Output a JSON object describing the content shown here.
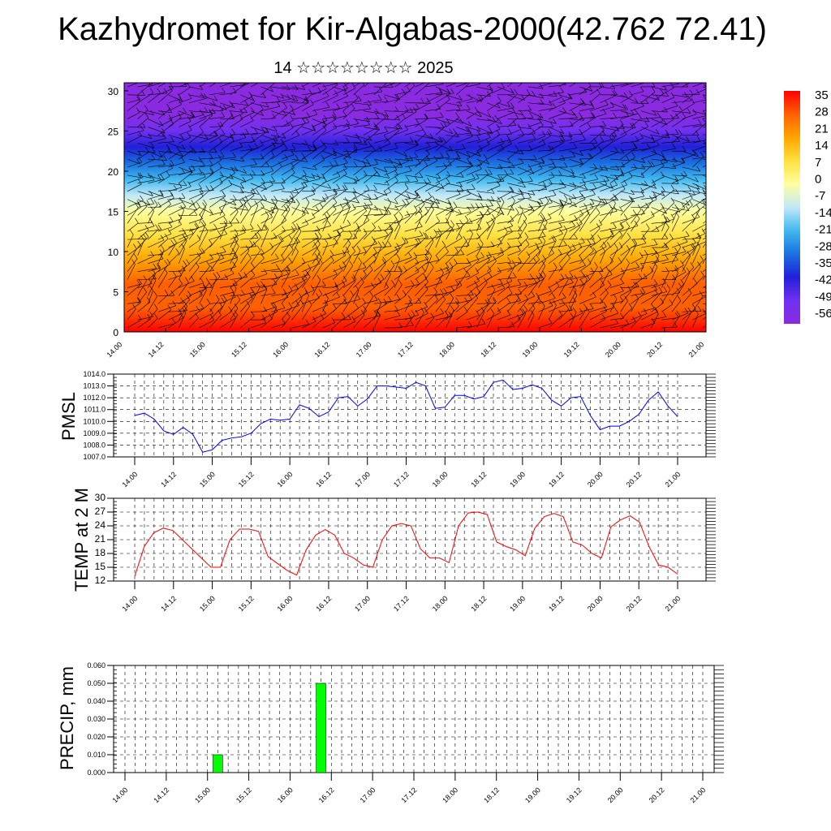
{
  "title": "Kazhydromet for Kir-Algabas-2000(42.762 72.41)",
  "subtitle": "14 ☆☆☆☆☆☆☆☆ 2025",
  "chart_data": [
    {
      "type": "heatmap",
      "name": "cross-section",
      "ylim": [
        0,
        31
      ],
      "yticks": [
        "0",
        "5",
        "10",
        "15",
        "20",
        "25",
        "30"
      ],
      "ytick_values": [
        0,
        5,
        10,
        15,
        20,
        25,
        30
      ],
      "xticks": [
        "14.00",
        "14.12",
        "15.00",
        "15.12",
        "16.00",
        "16.12",
        "17.00",
        "17.12",
        "18.00",
        "18.12",
        "19.00",
        "19.12",
        "20.00",
        "20.12",
        "21.00"
      ],
      "colorbar": {
        "labels": [
          "35",
          "28",
          "21",
          "14",
          "7",
          "0",
          "-7",
          "-14",
          "-21",
          "-28",
          "-35",
          "-42",
          "-49",
          "-56"
        ],
        "colors": [
          "#ff0000",
          "#ff6000",
          "#ffa500",
          "#ffe040",
          "#ffffa0",
          "#c0e8f8",
          "#40b8f0",
          "#1a70e0",
          "#2020d8",
          "#7030f0",
          "#8a2be2"
        ]
      },
      "temperature_by_height": {
        "height": [
          0,
          3,
          6,
          9,
          12,
          15,
          17,
          19,
          21,
          23,
          25,
          27,
          31
        ],
        "temp": [
          35,
          30,
          22,
          14,
          6,
          -5,
          -14,
          -24,
          -33,
          -42,
          -52,
          -58,
          -60
        ]
      }
    },
    {
      "type": "line",
      "name": "pmsl",
      "ylabel": "PMSL",
      "ylim": [
        1007.0,
        1014.0
      ],
      "yticks": [
        "1007.0",
        "1008.0",
        "1009.0",
        "1010.0",
        "1011.0",
        "1012.0",
        "1013.0",
        "1014.0"
      ],
      "ytick_values": [
        1007,
        1008,
        1009,
        1010,
        1011,
        1012,
        1013,
        1014
      ],
      "xticks": [
        "14.00",
        "14.12",
        "15.00",
        "15.12",
        "16.00",
        "16.12",
        "17.00",
        "17.12",
        "18.00",
        "18.12",
        "19.00",
        "19.12",
        "20.00",
        "20.12",
        "21.00"
      ],
      "color": "#0000ff",
      "values": [
        1010.5,
        1010.7,
        1010.2,
        1009.2,
        1008.9,
        1009.5,
        1008.9,
        1007.4,
        1007.6,
        1008.4,
        1008.6,
        1008.7,
        1009.0,
        1009.8,
        1010.2,
        1010.1,
        1010.2,
        1011.4,
        1011.1,
        1010.4,
        1010.8,
        1012.0,
        1012.1,
        1011.3,
        1011.9,
        1013.0,
        1013.0,
        1012.9,
        1012.8,
        1013.3,
        1013.0,
        1011.1,
        1011.2,
        1012.2,
        1012.2,
        1011.9,
        1012.1,
        1013.3,
        1013.5,
        1012.7,
        1012.8,
        1013.1,
        1012.8,
        1011.8,
        1011.3,
        1012.0,
        1012.1,
        1010.5,
        1009.3,
        1009.6,
        1009.6,
        1010.0,
        1010.6,
        1011.8,
        1012.5,
        1011.3,
        1010.4
      ]
    },
    {
      "type": "line",
      "name": "temp2m",
      "ylabel": "TEMP at 2 M",
      "ylim": [
        12,
        30
      ],
      "yticks": [
        "12",
        "15",
        "18",
        "21",
        "24",
        "27",
        "30"
      ],
      "ytick_values": [
        12,
        15,
        18,
        21,
        24,
        27,
        30
      ],
      "xticks": [
        "14.00",
        "14.12",
        "15.00",
        "15.12",
        "16.00",
        "16.12",
        "17.00",
        "17.12",
        "18.00",
        "18.12",
        "19.00",
        "19.12",
        "20.00",
        "20.12",
        "21.00"
      ],
      "color": "#ff0000",
      "values": [
        13.0,
        19.5,
        22.5,
        23.5,
        23.0,
        21.0,
        19.0,
        17.0,
        15.0,
        15.0,
        21.0,
        23.3,
        23.3,
        22.8,
        17.3,
        15.8,
        14.3,
        13.3,
        18.8,
        22.0,
        23.2,
        22.0,
        18.0,
        17.0,
        15.5,
        15.0,
        21.0,
        24.0,
        24.5,
        24.0,
        19.0,
        17.0,
        17.0,
        16.0,
        24.0,
        26.8,
        27.0,
        26.5,
        20.5,
        19.5,
        18.8,
        17.5,
        23.5,
        26.0,
        26.7,
        26.0,
        20.5,
        19.8,
        18.0,
        17.0,
        23.8,
        25.3,
        26.2,
        24.8,
        19.5,
        15.5,
        15.0,
        13.5
      ]
    },
    {
      "type": "bar",
      "name": "precip",
      "ylabel": "PRECIP, mm",
      "ylim": [
        0,
        0.06
      ],
      "yticks": [
        "0.000",
        "0.010",
        "0.020",
        "0.030",
        "0.040",
        "0.050",
        "0.060"
      ],
      "ytick_values": [
        0,
        0.01,
        0.02,
        0.03,
        0.04,
        0.05,
        0.06
      ],
      "xticks": [
        "14.00",
        "14.12",
        "15.00",
        "15.12",
        "16.00",
        "16.12",
        "17.00",
        "17.12",
        "18.00",
        "18.12",
        "19.00",
        "19.12",
        "20.00",
        "20.12",
        "21.00"
      ],
      "color": "#00ff00",
      "bars": [
        {
          "time": "15.03",
          "value": 0.01
        },
        {
          "time": "16.09",
          "value": 0.05
        }
      ]
    }
  ]
}
